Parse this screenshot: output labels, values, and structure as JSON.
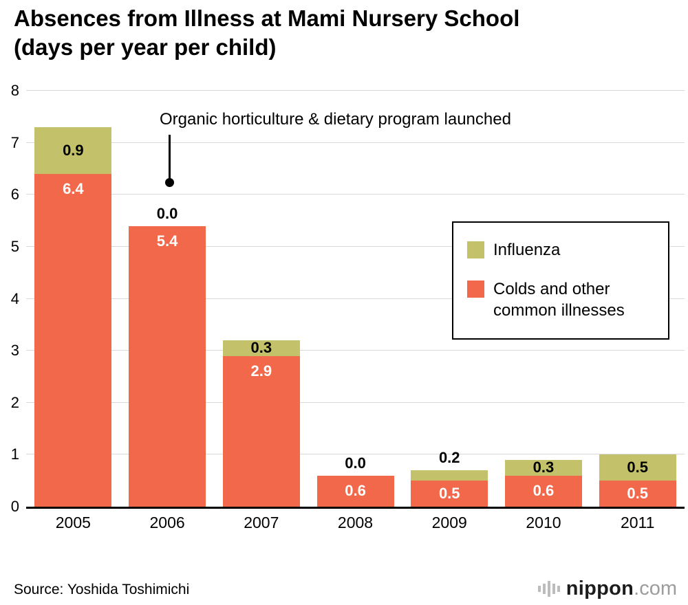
{
  "header": {
    "title_line1": "Absences from Illness at Mami Nursery School",
    "title_line2": "(days per year per child)"
  },
  "annotation": {
    "text": "Organic horticulture & dietary program launched"
  },
  "legend": {
    "items": [
      {
        "label": "Influenza",
        "color": "#c3c169"
      },
      {
        "label": "Colds and other common illnesses",
        "color": "#f2684a"
      }
    ]
  },
  "footer": {
    "source": "Source: Yoshida Toshimichi",
    "logo_name": "nippon",
    "logo_tld": ".com"
  },
  "chart_data": {
    "type": "bar",
    "stacked": true,
    "title": "Absences from Illness at Mami Nursery School (days per year per child)",
    "categories": [
      "2005",
      "2006",
      "2007",
      "2008",
      "2009",
      "2010",
      "2011"
    ],
    "series": [
      {
        "name": "Influenza",
        "color": "#c3c169",
        "values": [
          0.9,
          0.0,
          0.3,
          0.0,
          0.2,
          0.3,
          0.5
        ]
      },
      {
        "name": "Colds and other common illnesses",
        "color": "#f2684a",
        "values": [
          6.4,
          5.4,
          2.9,
          0.6,
          0.5,
          0.6,
          0.5
        ]
      }
    ],
    "totals": [
      7.3,
      5.4,
      3.2,
      0.6,
      0.7,
      0.9,
      1.0
    ],
    "xlabel": "",
    "ylabel": "",
    "ylim": [
      0,
      8
    ],
    "yticks": [
      0,
      1,
      2,
      3,
      4,
      5,
      6,
      7,
      8
    ],
    "grid": true,
    "legend_position": "right-inside",
    "annotation": "Organic horticulture & dietary program launched",
    "value_label_colors": {
      "Influenza": "#000000",
      "Colds and other common illnesses": "#ffffff"
    }
  }
}
